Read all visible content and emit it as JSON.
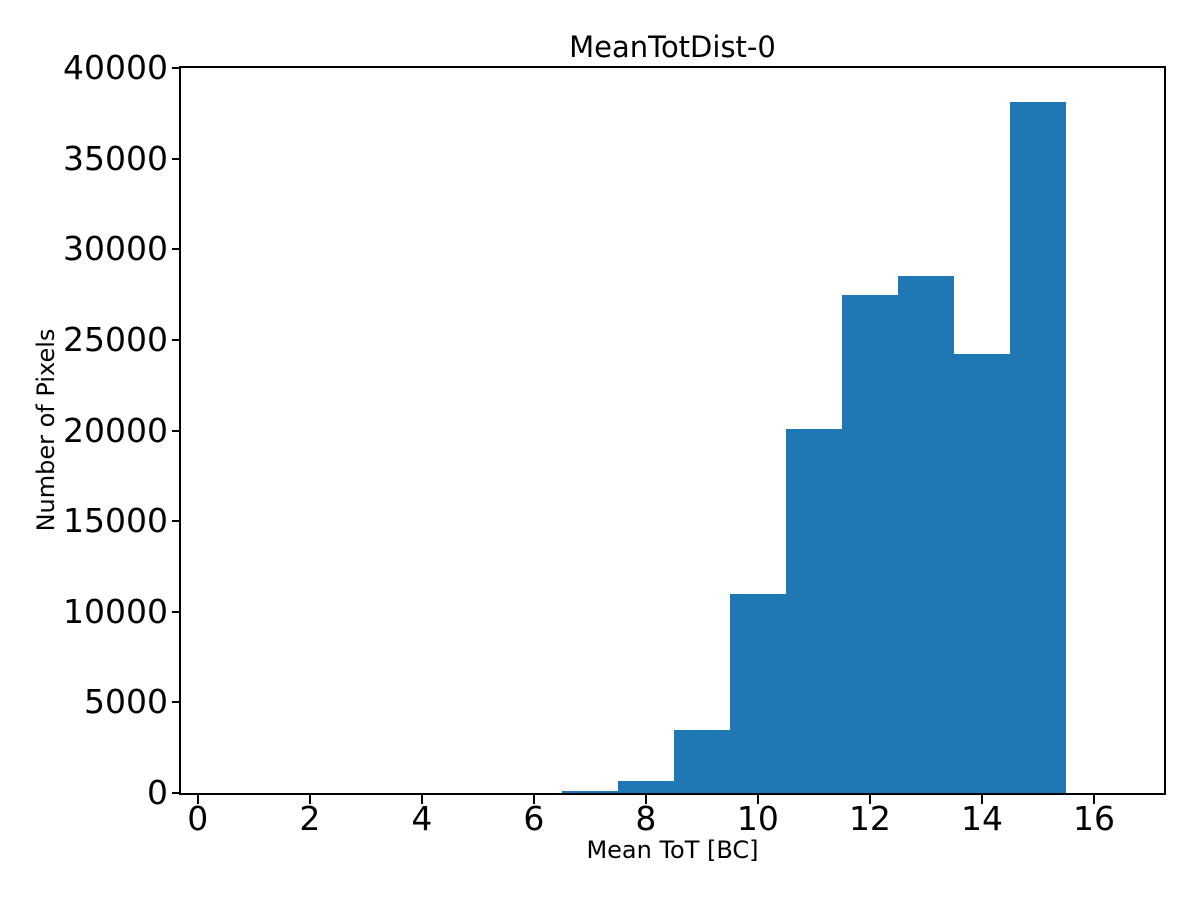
{
  "chart_data": {
    "type": "bar",
    "subtype": "histogram",
    "title": "MeanTotDist-0",
    "xlabel": "Mean ToT [BC]",
    "ylabel": "Number of Pixels",
    "bar_color": "#1f77b4",
    "spine_color": "#000000",
    "background_color": "#ffffff",
    "bin_edges": [
      6.5,
      7.5,
      8.5,
      9.5,
      10.5,
      11.5,
      12.5,
      13.5,
      14.5,
      15.5
    ],
    "counts": [
      100,
      650,
      3450,
      11000,
      20100,
      27500,
      28500,
      24200,
      38100
    ],
    "xlim": [
      -0.3,
      17.25
    ],
    "ylim": [
      0,
      40000
    ],
    "xticks": [
      0,
      2,
      4,
      6,
      8,
      10,
      12,
      14,
      16
    ],
    "yticks": [
      0,
      5000,
      10000,
      15000,
      20000,
      25000,
      30000,
      35000,
      40000
    ],
    "grid": false,
    "legend": null
  }
}
